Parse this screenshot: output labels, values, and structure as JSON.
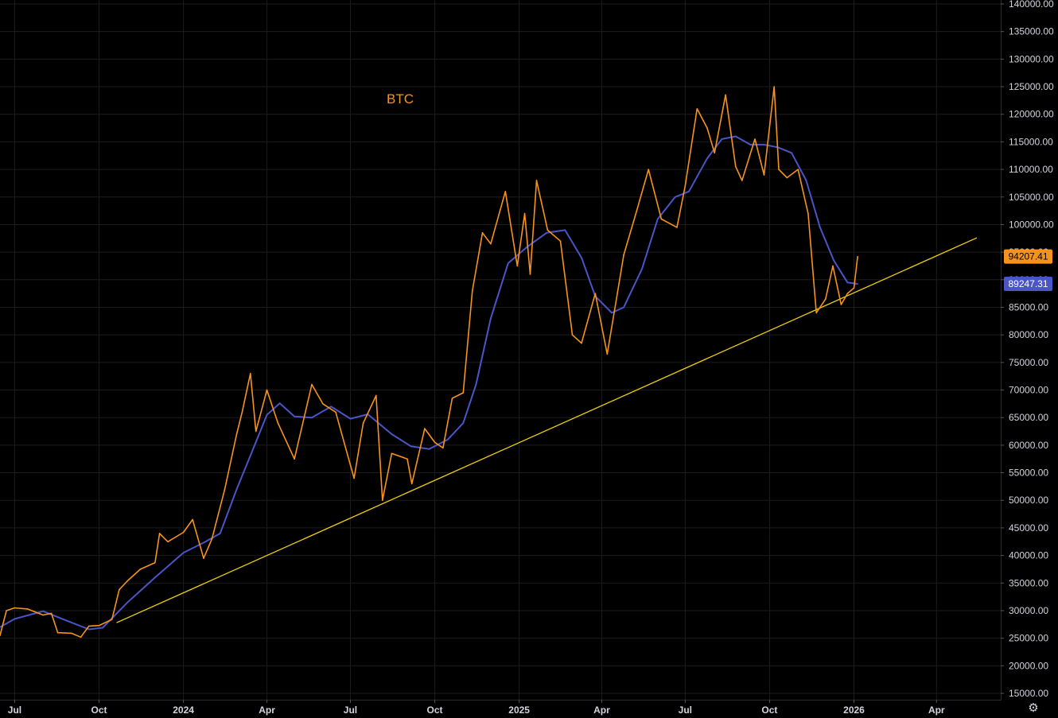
{
  "chart_data": {
    "type": "line",
    "title": "BTC",
    "xlabel": "",
    "ylabel": "",
    "ylim": [
      13500,
      140000
    ],
    "x_range": [
      "2023-06-15",
      "2026-06-10"
    ],
    "grid": true,
    "y_ticks": [
      "140000.00",
      "135000.00",
      "130000.00",
      "125000.00",
      "120000.00",
      "115000.00",
      "110000.00",
      "105000.00",
      "100000.00",
      "95000.00",
      "90000.00",
      "85000.00",
      "80000.00",
      "75000.00",
      "70000.00",
      "65000.00",
      "60000.00",
      "55000.00",
      "50000.00",
      "45000.00",
      "40000.00",
      "35000.00",
      "30000.00",
      "25000.00",
      "20000.00",
      "15000.00"
    ],
    "x_ticks": [
      {
        "date": "2023-07-01",
        "label": "Jul"
      },
      {
        "date": "2023-10-01",
        "label": "Oct"
      },
      {
        "date": "2024-01-01",
        "label": "2024"
      },
      {
        "date": "2024-04-01",
        "label": "Apr"
      },
      {
        "date": "2024-07-01",
        "label": "Jul"
      },
      {
        "date": "2024-10-01",
        "label": "Oct"
      },
      {
        "date": "2025-01-01",
        "label": "2025"
      },
      {
        "date": "2025-04-01",
        "label": "Apr"
      },
      {
        "date": "2025-07-01",
        "label": "Jul"
      },
      {
        "date": "2025-10-01",
        "label": "Oct"
      },
      {
        "date": "2026-01-01",
        "label": "2026"
      },
      {
        "date": "2026-04-01",
        "label": "Apr"
      }
    ],
    "series": [
      {
        "name": "",
        "color": "#f7931a",
        "points": [
          [
            "2023-06-15",
            25500
          ],
          [
            "2023-06-22",
            30000
          ],
          [
            "2023-07-01",
            30500
          ],
          [
            "2023-07-15",
            30300
          ],
          [
            "2023-08-01",
            29200
          ],
          [
            "2023-08-10",
            29500
          ],
          [
            "2023-08-17",
            26000
          ],
          [
            "2023-09-01",
            25900
          ],
          [
            "2023-09-11",
            25200
          ],
          [
            "2023-09-20",
            27200
          ],
          [
            "2023-10-01",
            27300
          ],
          [
            "2023-10-15",
            28400
          ],
          [
            "2023-10-23",
            33800
          ],
          [
            "2023-11-01",
            35400
          ],
          [
            "2023-11-15",
            37500
          ],
          [
            "2023-12-01",
            38700
          ],
          [
            "2023-12-06",
            44000
          ],
          [
            "2023-12-15",
            42500
          ],
          [
            "2024-01-01",
            44200
          ],
          [
            "2024-01-11",
            46500
          ],
          [
            "2024-01-23",
            39500
          ],
          [
            "2024-02-01",
            43000
          ],
          [
            "2024-02-15",
            52000
          ],
          [
            "2024-02-28",
            62000
          ],
          [
            "2024-03-05",
            66000
          ],
          [
            "2024-03-14",
            73000
          ],
          [
            "2024-03-20",
            62500
          ],
          [
            "2024-04-01",
            70000
          ],
          [
            "2024-04-13",
            64000
          ],
          [
            "2024-05-01",
            57500
          ],
          [
            "2024-05-20",
            71000
          ],
          [
            "2024-06-01",
            67500
          ],
          [
            "2024-06-15",
            66000
          ],
          [
            "2024-07-05",
            54000
          ],
          [
            "2024-07-15",
            64000
          ],
          [
            "2024-07-29",
            69000
          ],
          [
            "2024-08-05",
            50000
          ],
          [
            "2024-08-15",
            58500
          ],
          [
            "2024-09-01",
            57500
          ],
          [
            "2024-09-06",
            53000
          ],
          [
            "2024-09-20",
            63000
          ],
          [
            "2024-10-01",
            60500
          ],
          [
            "2024-10-10",
            59500
          ],
          [
            "2024-10-20",
            68500
          ],
          [
            "2024-11-01",
            69500
          ],
          [
            "2024-11-11",
            88000
          ],
          [
            "2024-11-22",
            98500
          ],
          [
            "2024-12-01",
            96500
          ],
          [
            "2024-12-17",
            106000
          ],
          [
            "2024-12-30",
            92500
          ],
          [
            "2025-01-07",
            102000
          ],
          [
            "2025-01-13",
            91000
          ],
          [
            "2025-01-20",
            108000
          ],
          [
            "2025-02-01",
            99000
          ],
          [
            "2025-02-15",
            97000
          ],
          [
            "2025-02-28",
            80000
          ],
          [
            "2025-03-10",
            78500
          ],
          [
            "2025-03-25",
            87500
          ],
          [
            "2025-04-07",
            76500
          ],
          [
            "2025-04-15",
            84500
          ],
          [
            "2025-04-25",
            94500
          ],
          [
            "2025-05-10",
            103000
          ],
          [
            "2025-05-22",
            110000
          ],
          [
            "2025-06-05",
            101000
          ],
          [
            "2025-06-22",
            99500
          ],
          [
            "2025-07-01",
            107000
          ],
          [
            "2025-07-14",
            121000
          ],
          [
            "2025-07-25",
            117500
          ],
          [
            "2025-08-02",
            113000
          ],
          [
            "2025-08-14",
            123500
          ],
          [
            "2025-08-25",
            110500
          ],
          [
            "2025-09-01",
            108000
          ],
          [
            "2025-09-15",
            115500
          ],
          [
            "2025-09-25",
            109000
          ],
          [
            "2025-10-06",
            125000
          ],
          [
            "2025-10-11",
            110000
          ],
          [
            "2025-10-20",
            108500
          ],
          [
            "2025-11-01",
            110000
          ],
          [
            "2025-11-12",
            102000
          ],
          [
            "2025-11-21",
            84000
          ],
          [
            "2025-12-01",
            86500
          ],
          [
            "2025-12-09",
            92500
          ],
          [
            "2025-12-18",
            85500
          ],
          [
            "2025-12-25",
            87500
          ],
          [
            "2026-01-01",
            88500
          ],
          [
            "2026-01-05",
            94200
          ]
        ]
      },
      {
        "name": "",
        "color": "#4a55c8",
        "points": [
          [
            "2023-06-15",
            27000
          ],
          [
            "2023-07-01",
            28500
          ],
          [
            "2023-08-01",
            29900
          ],
          [
            "2023-08-25",
            28300
          ],
          [
            "2023-09-20",
            26600
          ],
          [
            "2023-10-05",
            26900
          ],
          [
            "2023-11-01",
            31500
          ],
          [
            "2023-12-01",
            36000
          ],
          [
            "2024-01-01",
            40500
          ],
          [
            "2024-01-25",
            42500
          ],
          [
            "2024-02-10",
            44000
          ],
          [
            "2024-02-28",
            52000
          ],
          [
            "2024-03-15",
            58500
          ],
          [
            "2024-04-01",
            65500
          ],
          [
            "2024-04-15",
            67600
          ],
          [
            "2024-05-01",
            65200
          ],
          [
            "2024-05-20",
            65000
          ],
          [
            "2024-06-10",
            67000
          ],
          [
            "2024-07-01",
            64800
          ],
          [
            "2024-07-20",
            65600
          ],
          [
            "2024-08-15",
            62000
          ],
          [
            "2024-09-05",
            59800
          ],
          [
            "2024-09-25",
            59300
          ],
          [
            "2024-10-15",
            61000
          ],
          [
            "2024-11-01",
            64000
          ],
          [
            "2024-11-15",
            71000
          ],
          [
            "2024-12-01",
            83000
          ],
          [
            "2024-12-20",
            93000
          ],
          [
            "2025-01-10",
            96000
          ],
          [
            "2025-01-31",
            98500
          ],
          [
            "2025-02-20",
            99000
          ],
          [
            "2025-03-10",
            94000
          ],
          [
            "2025-03-25",
            87000
          ],
          [
            "2025-04-12",
            84000
          ],
          [
            "2025-04-25",
            85000
          ],
          [
            "2025-05-15",
            92000
          ],
          [
            "2025-06-01",
            101000
          ],
          [
            "2025-06-20",
            105000
          ],
          [
            "2025-07-05",
            106000
          ],
          [
            "2025-07-25",
            112000
          ],
          [
            "2025-08-10",
            115500
          ],
          [
            "2025-08-25",
            116000
          ],
          [
            "2025-09-10",
            114500
          ],
          [
            "2025-09-25",
            114500
          ],
          [
            "2025-10-10",
            114000
          ],
          [
            "2025-10-25",
            113000
          ],
          [
            "2025-11-10",
            108000
          ],
          [
            "2025-11-25",
            99500
          ],
          [
            "2025-12-10",
            93500
          ],
          [
            "2025-12-25",
            89500
          ],
          [
            "2026-01-05",
            89247.31
          ]
        ]
      }
    ],
    "trendline": {
      "color": "#f0d000",
      "from": [
        "2023-10-20",
        27800
      ],
      "to": [
        "2026-05-15",
        97600
      ]
    },
    "price_labels": [
      {
        "value": 94207.41,
        "text": "94207.41",
        "bg": "#f7931a",
        "fg": "#000000"
      },
      {
        "value": 89247.31,
        "text": "89247.31",
        "bg": "#4a55c8",
        "fg": "#ffffff"
      }
    ]
  },
  "colors": {
    "background": "#000000",
    "grid": "#1c1c1c",
    "axis_text": "#d1d4dc",
    "title": "#f7931a"
  },
  "settings_icon": "gear-icon"
}
